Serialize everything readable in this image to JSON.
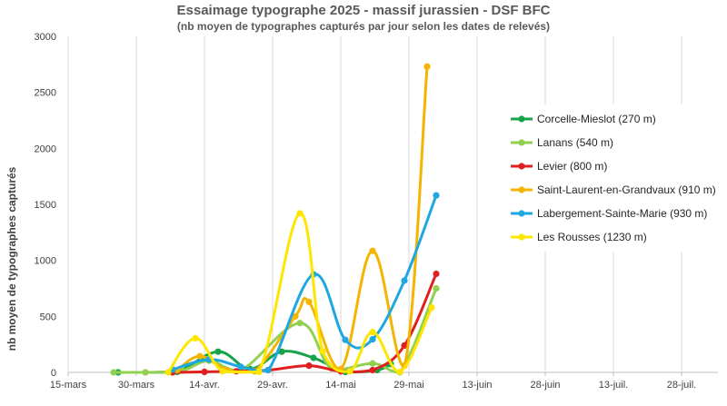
{
  "chart_data": {
    "type": "line",
    "title": "Essaimage typographe 2025 - massif jurassien - DSF BFC",
    "subtitle": "(nb moyen de typographes capturés par jour selon les dates de relevés)",
    "xlabel": "",
    "ylabel": "nb moyen de typographes capturés",
    "x_ticks": [
      "15-mars",
      "30-mars",
      "14-avr.",
      "29-avr.",
      "14-mai",
      "29-mai",
      "13-juin",
      "28-juin",
      "13-juil.",
      "28-juil."
    ],
    "y_ticks": [
      "0",
      "500",
      "1000",
      "1500",
      "2000",
      "2500",
      "3000"
    ],
    "xlim": [
      "2025-03-15",
      "2025-08-05"
    ],
    "ylim": [
      0,
      3000
    ],
    "grid": "vertical",
    "legend_position": "right",
    "series": [
      {
        "name": "Corcelle-Mieslot (270 m)",
        "color": "#17a34a",
        "points": [
          [
            "2025-03-26",
            0
          ],
          [
            "2025-04-01",
            0
          ],
          [
            "2025-04-08",
            5
          ],
          [
            "2025-04-17",
            185
          ],
          [
            "2025-04-24",
            30
          ],
          [
            "2025-05-01",
            185
          ],
          [
            "2025-05-08",
            130
          ],
          [
            "2025-05-15",
            5
          ],
          [
            "2025-05-22",
            20
          ],
          [
            "2025-05-25",
            75
          ]
        ]
      },
      {
        "name": "Lanans (540 m)",
        "color": "#92d050",
        "points": [
          [
            "2025-03-25",
            0
          ],
          [
            "2025-04-01",
            0
          ],
          [
            "2025-04-09",
            15
          ],
          [
            "2025-04-15",
            105
          ],
          [
            "2025-04-22",
            20
          ],
          [
            "2025-05-05",
            440
          ],
          [
            "2025-05-12",
            35
          ],
          [
            "2025-05-21",
            80
          ],
          [
            "2025-05-27",
            0
          ],
          [
            "2025-06-04",
            750
          ]
        ]
      },
      {
        "name": "Levier (800 m)",
        "color": "#e02020",
        "points": [
          [
            "2025-04-07",
            0
          ],
          [
            "2025-04-14",
            5
          ],
          [
            "2025-04-21",
            10
          ],
          [
            "2025-04-28",
            20
          ],
          [
            "2025-05-07",
            60
          ],
          [
            "2025-05-14",
            10
          ],
          [
            "2025-05-21",
            20
          ],
          [
            "2025-05-28",
            240
          ],
          [
            "2025-06-04",
            880
          ]
        ]
      },
      {
        "name": "Saint-Laurent-en-Grandvaux (910 m)",
        "color": "#f4b400",
        "points": [
          [
            "2025-04-08",
            20
          ],
          [
            "2025-04-13",
            145
          ],
          [
            "2025-04-19",
            20
          ],
          [
            "2025-04-25",
            10
          ],
          [
            "2025-05-04",
            500
          ],
          [
            "2025-05-07",
            630
          ],
          [
            "2025-05-14",
            30
          ],
          [
            "2025-05-21",
            1085
          ],
          [
            "2025-05-28",
            60
          ],
          [
            "2025-06-02",
            2730
          ]
        ]
      },
      {
        "name": "Labergement-Sainte-Marie  (930 m)",
        "color": "#1ea7e1",
        "points": [
          [
            "2025-04-07",
            25
          ],
          [
            "2025-04-15",
            115
          ],
          [
            "2025-04-22",
            50
          ],
          [
            "2025-04-28",
            20
          ],
          [
            "2025-05-08",
            875
          ],
          [
            "2025-05-15",
            290
          ],
          [
            "2025-05-21",
            295
          ],
          [
            "2025-05-28",
            820
          ],
          [
            "2025-06-04",
            1580
          ]
        ]
      },
      {
        "name": "Les Rousses (1230 m)",
        "color": "#ffe600",
        "points": [
          [
            "2025-04-06",
            0
          ],
          [
            "2025-04-12",
            305
          ],
          [
            "2025-04-18",
            10
          ],
          [
            "2025-04-26",
            5
          ],
          [
            "2025-05-05",
            1420
          ],
          [
            "2025-05-10",
            190
          ],
          [
            "2025-05-16",
            10
          ],
          [
            "2025-05-21",
            360
          ],
          [
            "2025-05-27",
            5
          ],
          [
            "2025-06-03",
            580
          ]
        ]
      }
    ]
  }
}
